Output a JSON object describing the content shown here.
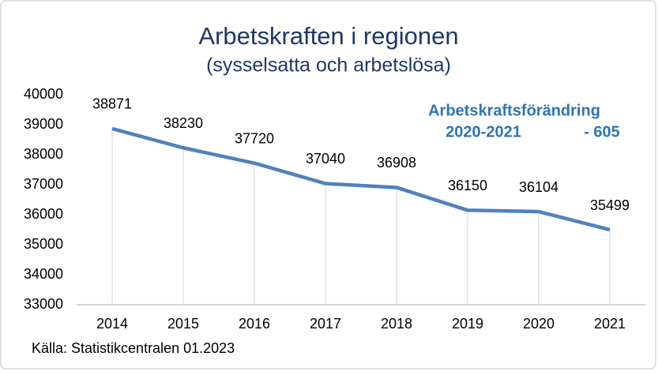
{
  "chart_data": {
    "type": "line",
    "title": "Arbetskraften i regionen",
    "subtitle": "(sysselsatta och arbetslösa)",
    "categories": [
      "2014",
      "2015",
      "2016",
      "2017",
      "2018",
      "2019",
      "2020",
      "2021"
    ],
    "values": [
      38871,
      38230,
      37720,
      37040,
      36908,
      36150,
      36104,
      35499
    ],
    "color": "#4f81bd",
    "ylim": [
      33000,
      40000
    ],
    "yticks": [
      33000,
      34000,
      35000,
      36000,
      37000,
      38000,
      39000,
      40000
    ],
    "drop_lines": true,
    "annotation": {
      "title": "Arbetskraftsförändring",
      "period": "2020-2021",
      "change": "- 605"
    },
    "source": "Källa: Statistikcentralen 01.2023"
  }
}
